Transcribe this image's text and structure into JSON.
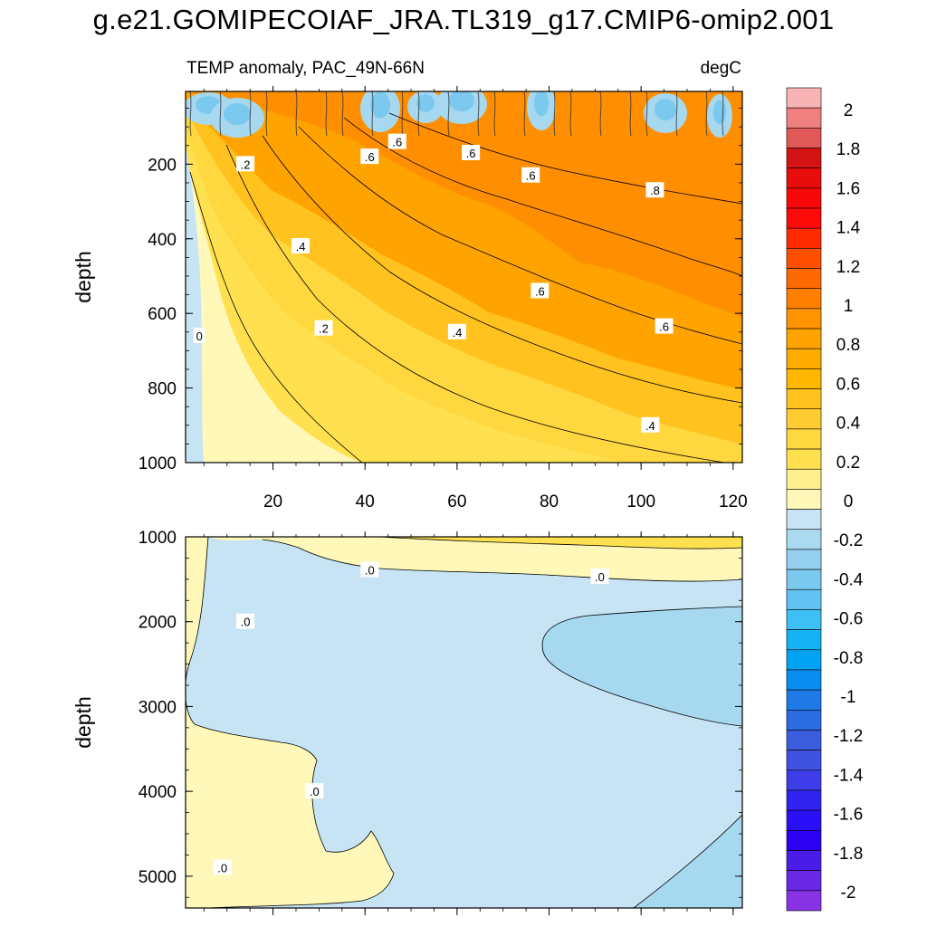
{
  "title": "g.e21.GOMIPECOIAF_JRA.TL319_g17.CMIP6-omip2.001",
  "chart_data": {
    "type": "heatmap",
    "panels": [
      {
        "subtitle_left": "TEMP anomaly, PAC_49N-66N",
        "subtitle_right": "degC",
        "ylabel": "depth",
        "xlim": [
          1,
          122
        ],
        "ylim": [
          1000,
          5
        ],
        "y_reversed": true,
        "x_ticks": [
          20,
          40,
          60,
          80,
          100,
          120
        ],
        "x_tick_labels": [
          "20",
          "40",
          "60",
          "80",
          "100",
          "120"
        ],
        "y_ticks": [
          200,
          400,
          600,
          800,
          1000
        ],
        "y_tick_labels": [
          "200",
          "400",
          "600",
          "800",
          "1000"
        ],
        "contour_labels": [
          {
            "text": ".2",
            "x": 14,
            "y": 200
          },
          {
            "text": ".6",
            "x": 47,
            "y": 140
          },
          {
            "text": ".6",
            "x": 41,
            "y": 180
          },
          {
            "text": ".6",
            "x": 63,
            "y": 170
          },
          {
            "text": ".6",
            "x": 76,
            "y": 230
          },
          {
            "text": ".8",
            "x": 103,
            "y": 270
          },
          {
            "text": ".4",
            "x": 26,
            "y": 420
          },
          {
            "text": ".6",
            "x": 78,
            "y": 540
          },
          {
            "text": "0",
            "x": 4,
            "y": 660
          },
          {
            "text": ".2",
            "x": 31,
            "y": 640
          },
          {
            "text": ".4",
            "x": 60,
            "y": 650
          },
          {
            "text": ".6",
            "x": 105,
            "y": 635
          },
          {
            "text": ".4",
            "x": 102,
            "y": 900
          }
        ]
      },
      {
        "ylabel": "depth",
        "xlim": [
          1,
          122
        ],
        "ylim": [
          5375,
          1000
        ],
        "y_reversed": true,
        "y_ticks": [
          1000,
          2000,
          3000,
          4000,
          5000
        ],
        "y_tick_labels": [
          "1000",
          "2000",
          "3000",
          "4000",
          "5000"
        ],
        "contour_labels": [
          {
            "text": ".0",
            "x": 41,
            "y": 1390
          },
          {
            "text": ".0",
            "x": 91,
            "y": 1470
          },
          {
            "text": ".0",
            "x": 14,
            "y": 2000
          },
          {
            "text": ".0",
            "x": 29,
            "y": 4000
          },
          {
            "text": ".0",
            "x": 9,
            "y": 4900
          }
        ]
      }
    ],
    "colorbar": {
      "levels": [
        "2",
        "1.8",
        "1.6",
        "1.4",
        "1.2",
        "1",
        "0.8",
        "0.6",
        "0.4",
        "0.2",
        "0",
        "-0.2",
        "-0.4",
        "-0.6",
        "-0.8",
        "-1",
        "-1.2",
        "-1.4",
        "-1.6",
        "-1.8",
        "-2"
      ],
      "colors": [
        "#f8b4b4",
        "#f08080",
        "#e05858",
        "#d41414",
        "#e80c0c",
        "#f80808",
        "#ff0a0a",
        "#ff2a00",
        "#ff4f00",
        "#ff6a00",
        "#ff8000",
        "#ff9300",
        "#ffa300",
        "#ffac00",
        "#ffb700",
        "#ffc21f",
        "#ffcd33",
        "#ffd73f",
        "#ffe14f",
        "#fff08e",
        "#fff8b9",
        "#c6e4f4",
        "#abd9f0",
        "#96d0ef",
        "#7cc9ef",
        "#62c2f2",
        "#3fc0f4",
        "#15b3f4",
        "#02a3f2",
        "#0a8df0",
        "#1f7ae6",
        "#2c6be0",
        "#3b5edd",
        "#3f52e0",
        "#3d3ee8",
        "#3224f0",
        "#2a10f6",
        "#2c00f0",
        "#4a1ce8",
        "#6a28e6",
        "#8833e4"
      ]
    },
    "color_scale": {
      "pos_light": "#fff8b9",
      "pos_mid": "#ffd73f",
      "pos_orange": "#ffa300",
      "pos_deep": "#ff8f00",
      "neg_light": "#c6e4f4",
      "neg_mid": "#a6d8f0",
      "neg_deep": "#7cc9ef",
      "contour_line": "#000000"
    }
  }
}
